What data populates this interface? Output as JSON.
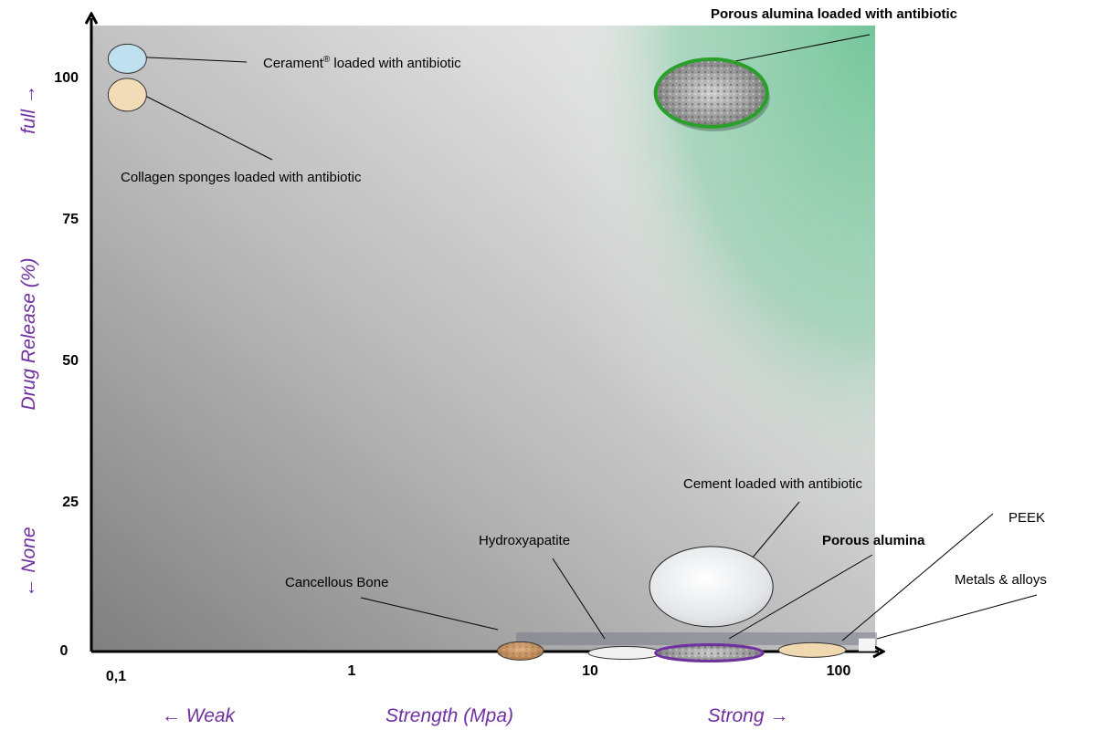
{
  "colors": {
    "axis_text": "#7030a0",
    "highlight_ring": "#2aa02a",
    "alumina_ring": "#7030a0",
    "green_zone": "#5fbf8c"
  },
  "chart_data": {
    "type": "scatter",
    "title": "",
    "x_scale": "log",
    "xlim": [
      0.1,
      160
    ],
    "ylim": [
      0,
      110
    ],
    "grid": false,
    "x_ticks": [
      {
        "value": 0.1,
        "label": "0,1"
      },
      {
        "value": 1,
        "label": "1"
      },
      {
        "value": 10,
        "label": "10"
      },
      {
        "value": 100,
        "label": "100"
      }
    ],
    "y_ticks": [
      {
        "value": 0,
        "label": "0"
      },
      {
        "value": 25,
        "label": "25"
      },
      {
        "value": 50,
        "label": "50"
      },
      {
        "value": 75,
        "label": "75"
      },
      {
        "value": 100,
        "label": "100"
      }
    ],
    "x_axis": {
      "left": "← Weak",
      "center": "Strength (Mpa)",
      "right": "Strong →"
    },
    "y_axis": {
      "bottom": "← None",
      "center": "Drug Release (%)",
      "top": "full →"
    },
    "materials": [
      {
        "name": "Ceramentâ loaded with antibiotic",
        "x": 0.12,
        "y": 102,
        "x_range": [
          0.1,
          0.14
        ],
        "fill": "#bfe0ee"
      },
      {
        "name": "Collagen sponges loaded with antibiotic",
        "x": 0.12,
        "y": 97,
        "x_range": [
          0.1,
          0.14
        ],
        "fill": "#f2dcb8"
      },
      {
        "name": "Porous alumina loaded with antibiotic",
        "x": 30,
        "y": 97,
        "x_range": [
          18,
          52
        ],
        "fill": "#a8a8a8",
        "highlight": true
      },
      {
        "name": "Cement loaded with antibiotic",
        "x": 30,
        "y": 10,
        "x_range": [
          17,
          55
        ],
        "fill": "#e8e8ea"
      },
      {
        "name": "Cancellous Bone",
        "x": 5,
        "y": 2,
        "x_range": [
          4.0,
          6.2
        ],
        "fill": "#c89060"
      },
      {
        "name": "Hydroxyapatite",
        "x": 13,
        "y": 1.5,
        "x_range": [
          9.5,
          19
        ],
        "fill": "#f0f0f0"
      },
      {
        "name": "Porous alumina",
        "x": 30,
        "y": 1.5,
        "x_range": [
          18,
          50
        ],
        "fill": "#9a9a9a"
      },
      {
        "name": "PEEK",
        "x": 80,
        "y": 2,
        "x_range": [
          58,
          110
        ],
        "fill": "#f0d8b0"
      },
      {
        "name": "Metals & alloys",
        "x": 150,
        "y": 1,
        "x_range": [
          140,
          160
        ],
        "fill": "#f5f5f5"
      }
    ]
  }
}
